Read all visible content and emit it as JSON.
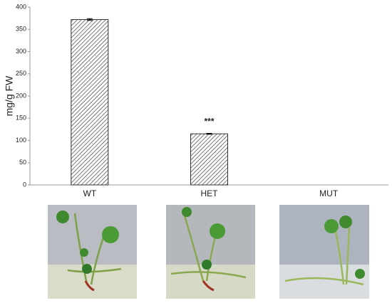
{
  "chart_data": {
    "type": "bar",
    "y_label": "mg/g FW",
    "categories": [
      "WT",
      "HET",
      "MUT"
    ],
    "values": [
      372,
      115,
      0
    ],
    "errors": [
      2,
      1,
      0
    ],
    "annotation": "***",
    "ylim": [
      0,
      400
    ],
    "yticks": [
      0,
      50,
      100,
      150,
      200,
      250,
      300,
      350,
      400
    ],
    "grid": false
  }
}
